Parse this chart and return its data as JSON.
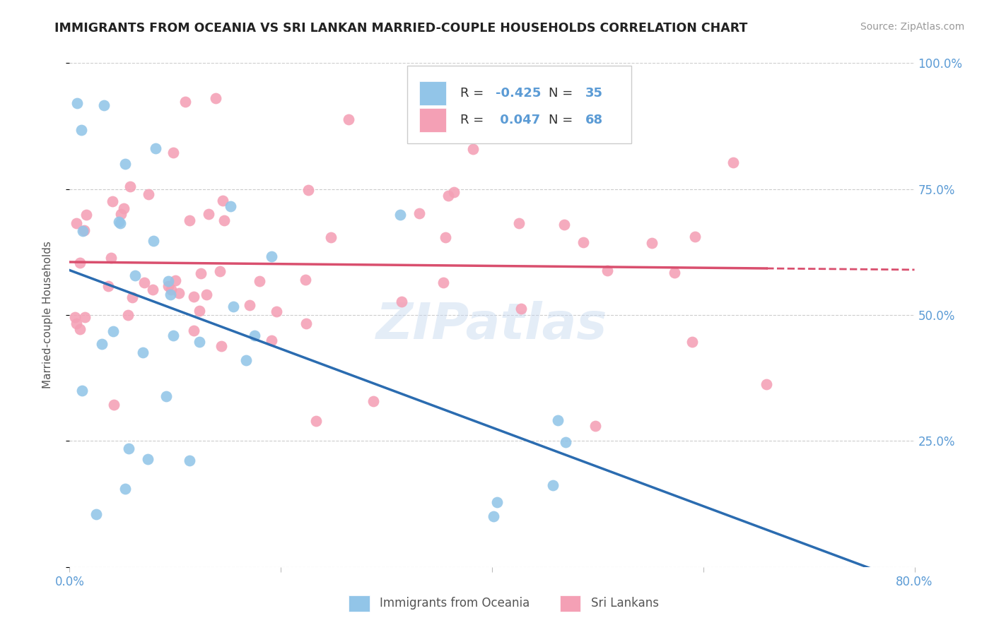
{
  "title": "IMMIGRANTS FROM OCEANIA VS SRI LANKAN MARRIED-COUPLE HOUSEHOLDS CORRELATION CHART",
  "source": "Source: ZipAtlas.com",
  "ylabel": "Married-couple Households",
  "x_label_blue": "Immigrants from Oceania",
  "x_label_pink": "Sri Lankans",
  "xlim": [
    0,
    0.8
  ],
  "ylim": [
    0,
    1.0
  ],
  "blue_R": -0.425,
  "blue_N": 35,
  "pink_R": 0.047,
  "pink_N": 68,
  "blue_color": "#92C5E8",
  "pink_color": "#F4A0B5",
  "blue_line_color": "#2B6CB0",
  "pink_line_color": "#D94F6E",
  "background_color": "#FFFFFF",
  "grid_color": "#CCCCCC",
  "title_color": "#222222",
  "axis_tick_color": "#5B9BD5",
  "legend_color": "#5B9BD5",
  "watermark": "ZIPatlas"
}
